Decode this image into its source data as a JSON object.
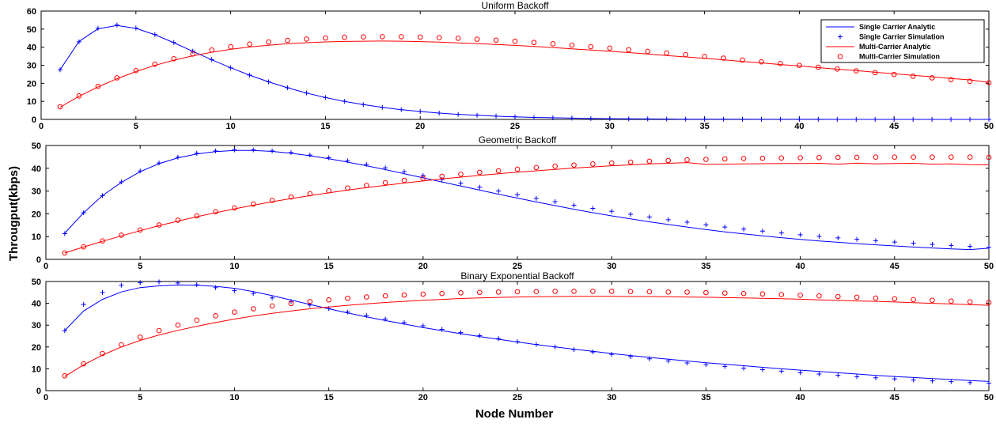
{
  "figure": {
    "ylabel": "Througput(kbps)",
    "xlabel": "Node Number"
  },
  "legend": {
    "placement": "top-right of top panel",
    "entries": [
      {
        "label": "Single Carrier Analytic",
        "color": "#0000ff",
        "style": "line"
      },
      {
        "label": "Single Carrier Simulation",
        "color": "#0000ff",
        "style": "plus"
      },
      {
        "label": "Multi-Carrier Analytic",
        "color": "#ff0000",
        "style": "line"
      },
      {
        "label": "Multi-Carrier Simulation",
        "color": "#ff0000",
        "style": "circle"
      }
    ]
  },
  "chart_data": [
    {
      "type": "line",
      "title": "Uniform Backoff",
      "xlim": [
        0,
        50
      ],
      "ylim": [
        0,
        60
      ],
      "xticks": [
        0,
        5,
        10,
        15,
        20,
        25,
        30,
        35,
        40,
        45,
        50
      ],
      "yticks": [
        0,
        10,
        20,
        30,
        40,
        50,
        60
      ],
      "grid": false,
      "x": [
        1,
        2,
        3,
        4,
        5,
        6,
        7,
        8,
        9,
        10,
        11,
        12,
        13,
        14,
        15,
        16,
        17,
        18,
        19,
        20,
        21,
        22,
        23,
        24,
        25,
        26,
        27,
        28,
        29,
        30,
        31,
        32,
        33,
        34,
        35,
        36,
        37,
        38,
        39,
        40,
        41,
        42,
        43,
        44,
        45,
        46,
        47,
        48,
        49,
        50
      ],
      "series": [
        {
          "name": "Single Carrier Analytic",
          "values": [
            27.5,
            43.2,
            50.2,
            52.0,
            50.4,
            46.9,
            42.5,
            37.7,
            33.0,
            28.6,
            24.5,
            20.8,
            17.5,
            14.6,
            12.1,
            10.0,
            8.2,
            6.7,
            5.4,
            4.4,
            3.5,
            2.8,
            2.3,
            1.8,
            1.4,
            1.1,
            0.9,
            0.7,
            0.5,
            0.4,
            0.3,
            0.25,
            0.2,
            0.15,
            0.12,
            0.1,
            0.08,
            0.06,
            0.05,
            0.04,
            0.03,
            0.02,
            0.02,
            0.01,
            0.01,
            0.01,
            0.01,
            0.0,
            0.0,
            0.0
          ]
        },
        {
          "name": "Single Carrier Simulation",
          "values": [
            27.5,
            43.0,
            50.5,
            52.3,
            50.6,
            47.0,
            42.6,
            37.8,
            33.1,
            28.6,
            24.5,
            20.8,
            17.5,
            14.6,
            12.1,
            10.0,
            8.2,
            6.7,
            5.4,
            4.4,
            3.5,
            2.8,
            2.3,
            1.8,
            1.4,
            1.1,
            0.9,
            0.7,
            0.5,
            0.4,
            0.3,
            0.25,
            0.2,
            0.15,
            0.12,
            0.1,
            0.08,
            0.06,
            0.05,
            0.04,
            0.03,
            0.02,
            0.02,
            0.01,
            0.01,
            0.01,
            0.01,
            0.0,
            0.0,
            0.0
          ]
        },
        {
          "name": "Multi-Carrier Analytic",
          "values": [
            6.8,
            12.8,
            18.0,
            22.5,
            26.5,
            29.9,
            32.8,
            35.2,
            37.2,
            38.8,
            40.1,
            41.1,
            41.9,
            42.5,
            42.9,
            43.2,
            43.3,
            43.4,
            43.3,
            43.1,
            42.8,
            42.4,
            42.0,
            41.5,
            41.0,
            40.4,
            39.8,
            39.1,
            38.4,
            37.7,
            37.0,
            36.2,
            35.4,
            34.6,
            33.8,
            33.0,
            32.1,
            31.3,
            30.4,
            29.6,
            28.7,
            27.8,
            27.0,
            26.1,
            25.3,
            24.4,
            23.6,
            22.7,
            21.9,
            20.5
          ]
        },
        {
          "name": "Multi-Carrier Simulation",
          "values": [
            7.0,
            13.0,
            18.3,
            23.0,
            27.0,
            30.6,
            33.6,
            36.2,
            38.4,
            40.2,
            41.7,
            42.9,
            43.8,
            44.5,
            45.1,
            45.5,
            45.7,
            45.8,
            45.8,
            45.6,
            45.3,
            44.9,
            44.4,
            43.9,
            43.3,
            42.6,
            41.9,
            41.1,
            40.3,
            39.5,
            38.6,
            37.7,
            36.8,
            35.9,
            34.9,
            33.9,
            32.9,
            31.9,
            30.9,
            29.9,
            28.9,
            27.9,
            26.9,
            25.9,
            24.9,
            23.9,
            23.0,
            22.0,
            21.1,
            20.3
          ]
        }
      ]
    },
    {
      "type": "line",
      "title": "Geometric Backoff",
      "xlim": [
        0,
        50
      ],
      "ylim": [
        0,
        50
      ],
      "xticks": [
        0,
        5,
        10,
        15,
        20,
        25,
        30,
        35,
        40,
        45,
        50
      ],
      "yticks": [
        0,
        10,
        20,
        30,
        40,
        50
      ],
      "grid": false,
      "x": [
        1,
        2,
        3,
        4,
        5,
        6,
        7,
        8,
        9,
        10,
        11,
        12,
        13,
        14,
        15,
        16,
        17,
        18,
        19,
        20,
        21,
        22,
        23,
        24,
        25,
        26,
        27,
        28,
        29,
        30,
        31,
        32,
        33,
        34,
        35,
        36,
        37,
        38,
        39,
        40,
        41,
        42,
        43,
        44,
        45,
        46,
        47,
        48,
        49,
        50
      ],
      "series": [
        {
          "name": "Single Carrier Analytic",
          "values": [
            11.5,
            20.5,
            28.0,
            33.8,
            38.5,
            42.0,
            44.6,
            46.3,
            47.3,
            47.8,
            47.8,
            47.4,
            46.6,
            45.5,
            44.2,
            42.7,
            41.1,
            39.4,
            37.6,
            35.8,
            34.0,
            32.2,
            30.4,
            28.6,
            26.9,
            25.2,
            23.6,
            22.0,
            20.5,
            19.1,
            17.8,
            16.5,
            15.3,
            14.2,
            13.1,
            12.1,
            11.2,
            10.3,
            9.5,
            8.8,
            8.1,
            7.5,
            6.9,
            6.4,
            5.9,
            5.4,
            5.0,
            4.6,
            4.3,
            4.9
          ]
        },
        {
          "name": "Single Carrier Simulation",
          "values": [
            11.3,
            20.5,
            28.0,
            34.0,
            38.8,
            42.3,
            44.9,
            46.6,
            47.6,
            48.1,
            48.1,
            47.6,
            46.9,
            45.8,
            44.6,
            43.3,
            41.7,
            40.2,
            38.5,
            36.8,
            35.1,
            33.4,
            31.7,
            30.0,
            28.4,
            26.8,
            25.3,
            23.8,
            22.4,
            21.1,
            19.8,
            18.6,
            17.4,
            16.3,
            15.2,
            14.2,
            13.3,
            12.4,
            11.6,
            10.8,
            10.1,
            9.4,
            8.8,
            8.2,
            7.6,
            7.1,
            6.6,
            6.1,
            5.7,
            5.3
          ]
        },
        {
          "name": "Multi-Carrier Analytic",
          "values": [
            2.8,
            5.4,
            7.9,
            10.3,
            12.6,
            14.8,
            16.8,
            18.7,
            20.5,
            22.2,
            23.8,
            25.3,
            26.7,
            28.0,
            29.2,
            30.4,
            31.5,
            32.5,
            33.5,
            34.4,
            35.3,
            36.1,
            36.9,
            37.6,
            38.3,
            38.9,
            39.5,
            40.1,
            40.6,
            41.1,
            41.5,
            41.9,
            42.2,
            42.5,
            41.7,
            41.8,
            41.9,
            42.0,
            42.1,
            42.1,
            42.2,
            41.8,
            42.3,
            41.9,
            42.1,
            42.2,
            41.8,
            41.9,
            41.6,
            41.5
          ]
        },
        {
          "name": "Multi-Carrier Simulation",
          "values": [
            2.8,
            5.5,
            8.1,
            10.6,
            12.9,
            15.1,
            17.2,
            19.1,
            20.9,
            22.6,
            24.3,
            25.9,
            27.4,
            28.8,
            30.1,
            31.3,
            32.5,
            33.7,
            34.7,
            35.6,
            36.5,
            37.4,
            38.2,
            38.9,
            39.6,
            40.3,
            40.9,
            41.4,
            41.9,
            42.3,
            42.7,
            43.1,
            43.4,
            43.7,
            43.9,
            44.1,
            44.3,
            44.4,
            44.5,
            44.6,
            44.7,
            44.8,
            44.8,
            44.9,
            44.9,
            44.9,
            44.9,
            44.9,
            44.9,
            44.8
          ]
        }
      ]
    },
    {
      "type": "line",
      "title": "Binary Exponential Backoff",
      "xlim": [
        0,
        50
      ],
      "ylim": [
        0,
        50
      ],
      "xticks": [
        0,
        5,
        10,
        15,
        20,
        25,
        30,
        35,
        40,
        45,
        50
      ],
      "yticks": [
        0,
        10,
        20,
        30,
        40,
        50
      ],
      "grid": false,
      "x": [
        1,
        2,
        3,
        4,
        5,
        6,
        7,
        8,
        9,
        10,
        11,
        12,
        13,
        14,
        15,
        16,
        17,
        18,
        19,
        20,
        21,
        22,
        23,
        24,
        25,
        26,
        27,
        28,
        29,
        30,
        31,
        32,
        33,
        34,
        35,
        36,
        37,
        38,
        39,
        40,
        41,
        42,
        43,
        44,
        45,
        46,
        47,
        48,
        49,
        50
      ],
      "series": [
        {
          "name": "Single Carrier Analytic",
          "values": [
            27.5,
            36.5,
            41.8,
            45.2,
            47.2,
            48.0,
            48.4,
            48.3,
            47.8,
            46.9,
            45.4,
            43.5,
            41.5,
            39.5,
            37.5,
            35.6,
            33.8,
            32.1,
            30.5,
            28.9,
            27.5,
            26.1,
            24.8,
            23.5,
            22.3,
            21.1,
            20.0,
            19.0,
            18.0,
            17.0,
            16.1,
            15.2,
            14.4,
            13.6,
            12.8,
            12.1,
            11.4,
            10.7,
            10.0,
            9.4,
            8.8,
            8.2,
            7.6,
            7.0,
            6.5,
            6.0,
            5.5,
            5.1,
            4.6,
            4.2
          ]
        },
        {
          "name": "Single Carrier Simulation",
          "values": [
            27.5,
            39.5,
            45.0,
            48.3,
            49.5,
            49.8,
            49.3,
            48.5,
            47.2,
            45.8,
            44.5,
            42.5,
            40.8,
            39.2,
            37.6,
            36.0,
            34.4,
            32.8,
            31.2,
            29.7,
            28.1,
            26.6,
            25.2,
            23.8,
            22.4,
            21.2,
            20.0,
            18.8,
            17.7,
            16.6,
            15.6,
            14.6,
            13.6,
            12.7,
            11.9,
            11.1,
            10.3,
            9.6,
            8.9,
            8.2,
            7.6,
            7.0,
            6.4,
            5.9,
            5.4,
            4.9,
            4.5,
            4.1,
            3.7,
            3.4
          ]
        },
        {
          "name": "Multi-Carrier Analytic",
          "values": [
            6.5,
            11.8,
            16.3,
            20.0,
            23.0,
            25.5,
            27.6,
            29.5,
            31.2,
            32.8,
            34.2,
            35.4,
            36.5,
            37.5,
            38.3,
            39.1,
            39.8,
            40.4,
            40.9,
            41.4,
            41.8,
            42.2,
            42.5,
            42.7,
            42.9,
            43.0,
            43.1,
            43.2,
            43.2,
            43.2,
            43.1,
            43.1,
            43.0,
            42.9,
            42.8,
            42.6,
            42.5,
            42.3,
            42.1,
            41.9,
            41.6,
            41.4,
            41.1,
            40.9,
            40.6,
            40.3,
            40.0,
            39.7,
            39.4,
            39.1
          ]
        },
        {
          "name": "Multi-Carrier Simulation",
          "values": [
            6.8,
            12.3,
            17.0,
            21.0,
            24.5,
            27.5,
            30.0,
            32.3,
            34.3,
            36.0,
            37.5,
            38.8,
            39.9,
            40.8,
            41.6,
            42.3,
            42.9,
            43.4,
            43.8,
            44.2,
            44.5,
            44.8,
            45.0,
            45.2,
            45.3,
            45.4,
            45.5,
            45.5,
            45.5,
            45.5,
            45.4,
            45.3,
            45.2,
            45.1,
            44.9,
            44.7,
            44.5,
            44.3,
            44.0,
            43.7,
            43.4,
            43.1,
            42.8,
            42.4,
            42.1,
            41.7,
            41.4,
            41.0,
            40.7,
            40.4
          ]
        }
      ]
    }
  ]
}
